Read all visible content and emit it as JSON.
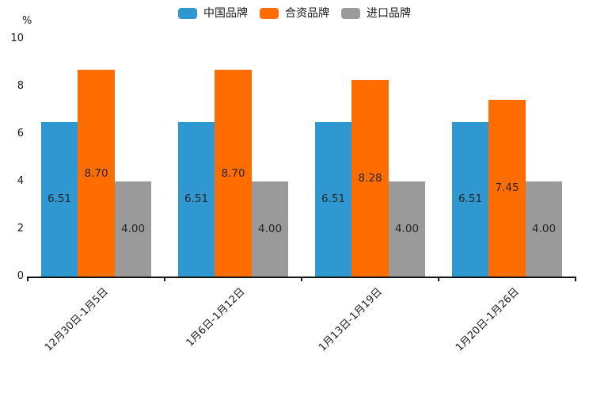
{
  "chart_data": {
    "type": "bar",
    "title": "",
    "ylabel": "%",
    "xlabel": "",
    "ylim": [
      0,
      10
    ],
    "y_ticks": [
      10,
      8,
      6,
      4,
      2,
      0
    ],
    "grid": false,
    "legend_position": "top-center",
    "value_label_format": "2-decimals",
    "categories": [
      "12月30日-1月5日",
      "1月6日-1月12日",
      "1月13日-1月19日",
      "1月20日-1月26日"
    ],
    "series": [
      {
        "key": "china-brand",
        "name": "中国品牌",
        "color": "#2F98D0",
        "values": [
          6.51,
          6.51,
          6.51,
          6.51
        ]
      },
      {
        "key": "joint-venture-brand",
        "name": "合资品牌",
        "color": "#FF6D00",
        "values": [
          8.7,
          8.7,
          8.28,
          7.45
        ]
      },
      {
        "key": "import-brand",
        "name": "进口品牌",
        "color": "#9A9A9A",
        "values": [
          4.0,
          4.0,
          4.0,
          4.0
        ]
      }
    ],
    "axis_color": "#141414",
    "text_color": "#1a1a1a"
  }
}
